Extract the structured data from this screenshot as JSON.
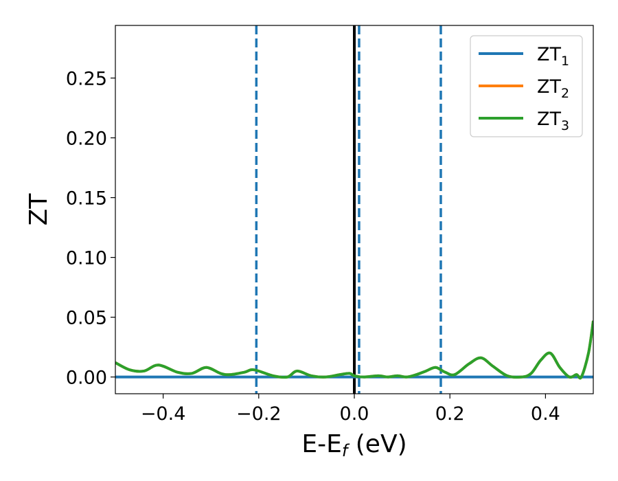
{
  "chart_data": {
    "type": "line",
    "xlabel_main": "E-E",
    "xlabel_sub": "f",
    "xlabel_unit": " (eV)",
    "ylabel": "ZT",
    "xlim": [
      -0.5,
      0.5
    ],
    "ylim": [
      -0.014,
      0.294
    ],
    "x_ticks": [
      -0.4,
      -0.2,
      0.0,
      0.2,
      0.4
    ],
    "x_tick_labels": [
      "−0.4",
      "−0.2",
      "0.0",
      "0.2",
      "0.4"
    ],
    "y_ticks": [
      0.0,
      0.05,
      0.1,
      0.15,
      0.2,
      0.25
    ],
    "y_tick_labels": [
      "0.00",
      "0.05",
      "0.10",
      "0.15",
      "0.20",
      "0.25"
    ],
    "grid": false,
    "legend_position": "top-right",
    "series": [
      {
        "name": "ZT",
        "name_sub": "1",
        "color": "#1f77b4",
        "x": [
          -0.5,
          0.5
        ],
        "y": [
          0.0,
          0.0
        ]
      },
      {
        "name": "ZT",
        "name_sub": "2",
        "color": "#ff7f0e",
        "x": [
          -0.5,
          -0.47,
          -0.44,
          -0.41,
          -0.37,
          -0.34,
          -0.31,
          -0.28,
          -0.26,
          -0.23,
          -0.21,
          -0.17,
          -0.14,
          -0.12,
          -0.09,
          -0.06,
          -0.03,
          -0.01,
          0.0,
          0.02,
          0.05,
          0.07,
          0.09,
          0.11,
          0.13,
          0.15,
          0.17,
          0.19,
          0.21,
          0.24,
          0.265,
          0.29,
          0.32,
          0.35,
          0.37,
          0.39,
          0.41,
          0.43,
          0.45,
          0.465,
          0.475,
          0.49,
          0.5
        ],
        "y": [
          0.012,
          0.006,
          0.005,
          0.01,
          0.004,
          0.003,
          0.008,
          0.003,
          0.002,
          0.004,
          0.006,
          0.001,
          0.0,
          0.005,
          0.001,
          0.0,
          0.002,
          0.003,
          0.001,
          0.0,
          0.001,
          0.0,
          0.001,
          0.0,
          0.002,
          0.005,
          0.008,
          0.004,
          0.002,
          0.011,
          0.016,
          0.009,
          0.001,
          0.0,
          0.003,
          0.014,
          0.02,
          0.008,
          0.0,
          0.002,
          0.0,
          0.02,
          0.047
        ]
      },
      {
        "name": "ZT",
        "name_sub": "3",
        "color": "#2ca02c",
        "x": [
          -0.5,
          -0.47,
          -0.44,
          -0.41,
          -0.37,
          -0.34,
          -0.31,
          -0.28,
          -0.26,
          -0.23,
          -0.21,
          -0.17,
          -0.14,
          -0.12,
          -0.09,
          -0.06,
          -0.03,
          -0.01,
          0.0,
          0.02,
          0.05,
          0.07,
          0.09,
          0.11,
          0.13,
          0.15,
          0.17,
          0.19,
          0.21,
          0.24,
          0.265,
          0.29,
          0.32,
          0.35,
          0.37,
          0.39,
          0.41,
          0.43,
          0.45,
          0.465,
          0.475,
          0.49,
          0.5
        ],
        "y": [
          0.012,
          0.006,
          0.005,
          0.01,
          0.004,
          0.003,
          0.008,
          0.003,
          0.002,
          0.004,
          0.006,
          0.001,
          0.0,
          0.005,
          0.001,
          0.0,
          0.002,
          0.003,
          0.001,
          0.0,
          0.001,
          0.0,
          0.001,
          0.0,
          0.002,
          0.005,
          0.008,
          0.004,
          0.002,
          0.011,
          0.016,
          0.009,
          0.001,
          0.0,
          0.003,
          0.014,
          0.02,
          0.008,
          0.0,
          0.002,
          0.0,
          0.02,
          0.047
        ]
      }
    ],
    "vertical_lines": [
      {
        "x": -0.205,
        "style": "dashed",
        "color": "#1f77b4"
      },
      {
        "x": 0.0,
        "style": "solid",
        "color": "#000000"
      },
      {
        "x": 0.01,
        "style": "dashed",
        "color": "#1f77b4"
      },
      {
        "x": 0.181,
        "style": "dashed",
        "color": "#1f77b4"
      }
    ]
  }
}
